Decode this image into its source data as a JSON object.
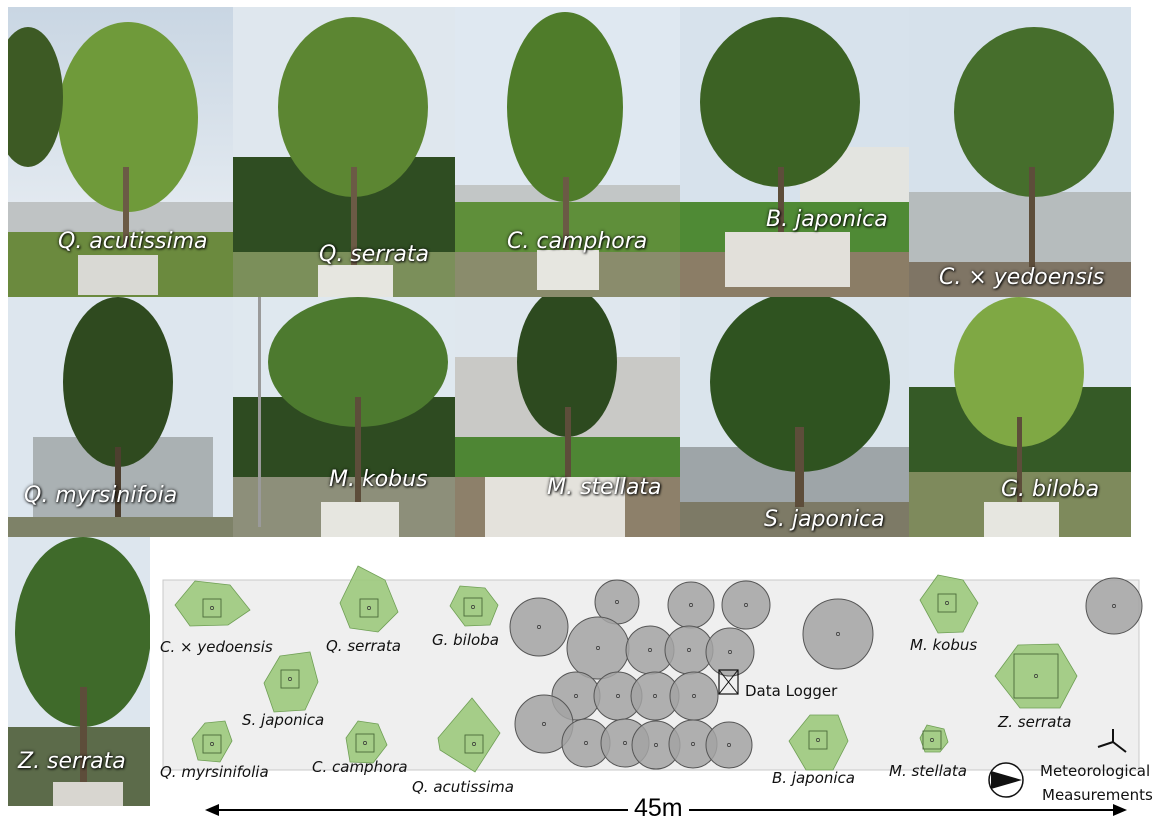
{
  "photos": {
    "q_acutissima": "Q. acutissima",
    "q_serrata": "Q. serrata",
    "c_camphora": "C. camphora",
    "b_japonica": "B. japonica",
    "c_yedoensis": "C. × yedoensis",
    "q_myrsinifoia": "Q. myrsinifoia",
    "m_kobus": "M. kobus",
    "m_stellata": "M. stellata",
    "s_japonica": "S. japonica",
    "g_biloba": "G. biloba",
    "z_serrata": "Z. serrata"
  },
  "map": {
    "labels": {
      "c_yedoensis": "C. × yedoensis",
      "q_serrata": "Q. serrata",
      "g_biloba": "G. biloba",
      "m_kobus": "M. kobus",
      "s_japonica": "S. japonica",
      "z_serrata": "Z. serrata",
      "q_myrsinifolia": "Q. myrsinifolia",
      "c_camphora": "C. camphora",
      "q_acutissima": "Q. acutissima",
      "b_japonica": "B. japonica",
      "m_stellata": "M. stellata"
    },
    "data_logger": "Data Logger",
    "meteo_line1": "Meteorological",
    "meteo_line2": "Measurements",
    "scale": "45m"
  },
  "colors": {
    "canopy_fill": "#9cc97c",
    "canopy_stroke": "#6f9f55",
    "background_tree_fill": "#a3a3a3",
    "plot_fill": "#efefef"
  }
}
